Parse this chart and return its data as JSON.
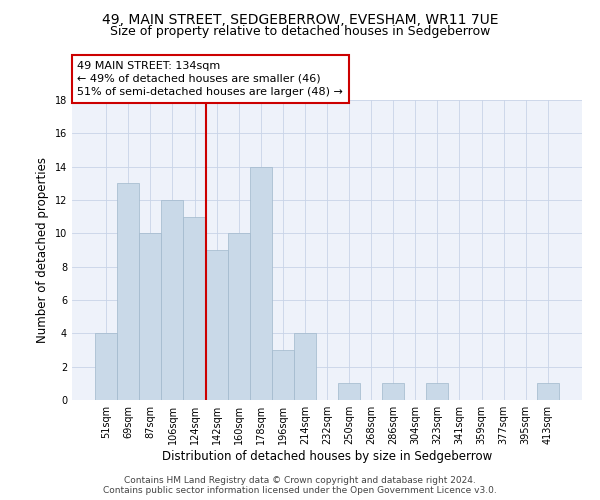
{
  "title": "49, MAIN STREET, SEDGEBERROW, EVESHAM, WR11 7UE",
  "subtitle": "Size of property relative to detached houses in Sedgeberrow",
  "xlabel": "Distribution of detached houses by size in Sedgeberrow",
  "ylabel": "Number of detached properties",
  "categories": [
    "51sqm",
    "69sqm",
    "87sqm",
    "106sqm",
    "124sqm",
    "142sqm",
    "160sqm",
    "178sqm",
    "196sqm",
    "214sqm",
    "232sqm",
    "250sqm",
    "268sqm",
    "286sqm",
    "304sqm",
    "323sqm",
    "341sqm",
    "359sqm",
    "377sqm",
    "395sqm",
    "413sqm"
  ],
  "values": [
    4,
    13,
    10,
    12,
    11,
    9,
    10,
    14,
    3,
    4,
    0,
    1,
    0,
    1,
    0,
    1,
    0,
    0,
    0,
    0,
    1
  ],
  "bar_color": "#c9d9e8",
  "bar_edgecolor": "#a0b8cc",
  "vline_color": "#cc0000",
  "annotation_line1": "49 MAIN STREET: 134sqm",
  "annotation_line2": "← 49% of detached houses are smaller (46)",
  "annotation_line3": "51% of semi-detached houses are larger (48) →",
  "annotation_box_color": "white",
  "annotation_box_edgecolor": "#cc0000",
  "ylim": [
    0,
    18
  ],
  "yticks": [
    0,
    2,
    4,
    6,
    8,
    10,
    12,
    14,
    16,
    18
  ],
  "grid_color": "#c8d4e8",
  "background_color": "#eef2fa",
  "footer1": "Contains HM Land Registry data © Crown copyright and database right 2024.",
  "footer2": "Contains public sector information licensed under the Open Government Licence v3.0.",
  "title_fontsize": 10,
  "subtitle_fontsize": 9,
  "xlabel_fontsize": 8.5,
  "ylabel_fontsize": 8.5,
  "tick_fontsize": 7,
  "annotation_fontsize": 8,
  "footer_fontsize": 6.5
}
